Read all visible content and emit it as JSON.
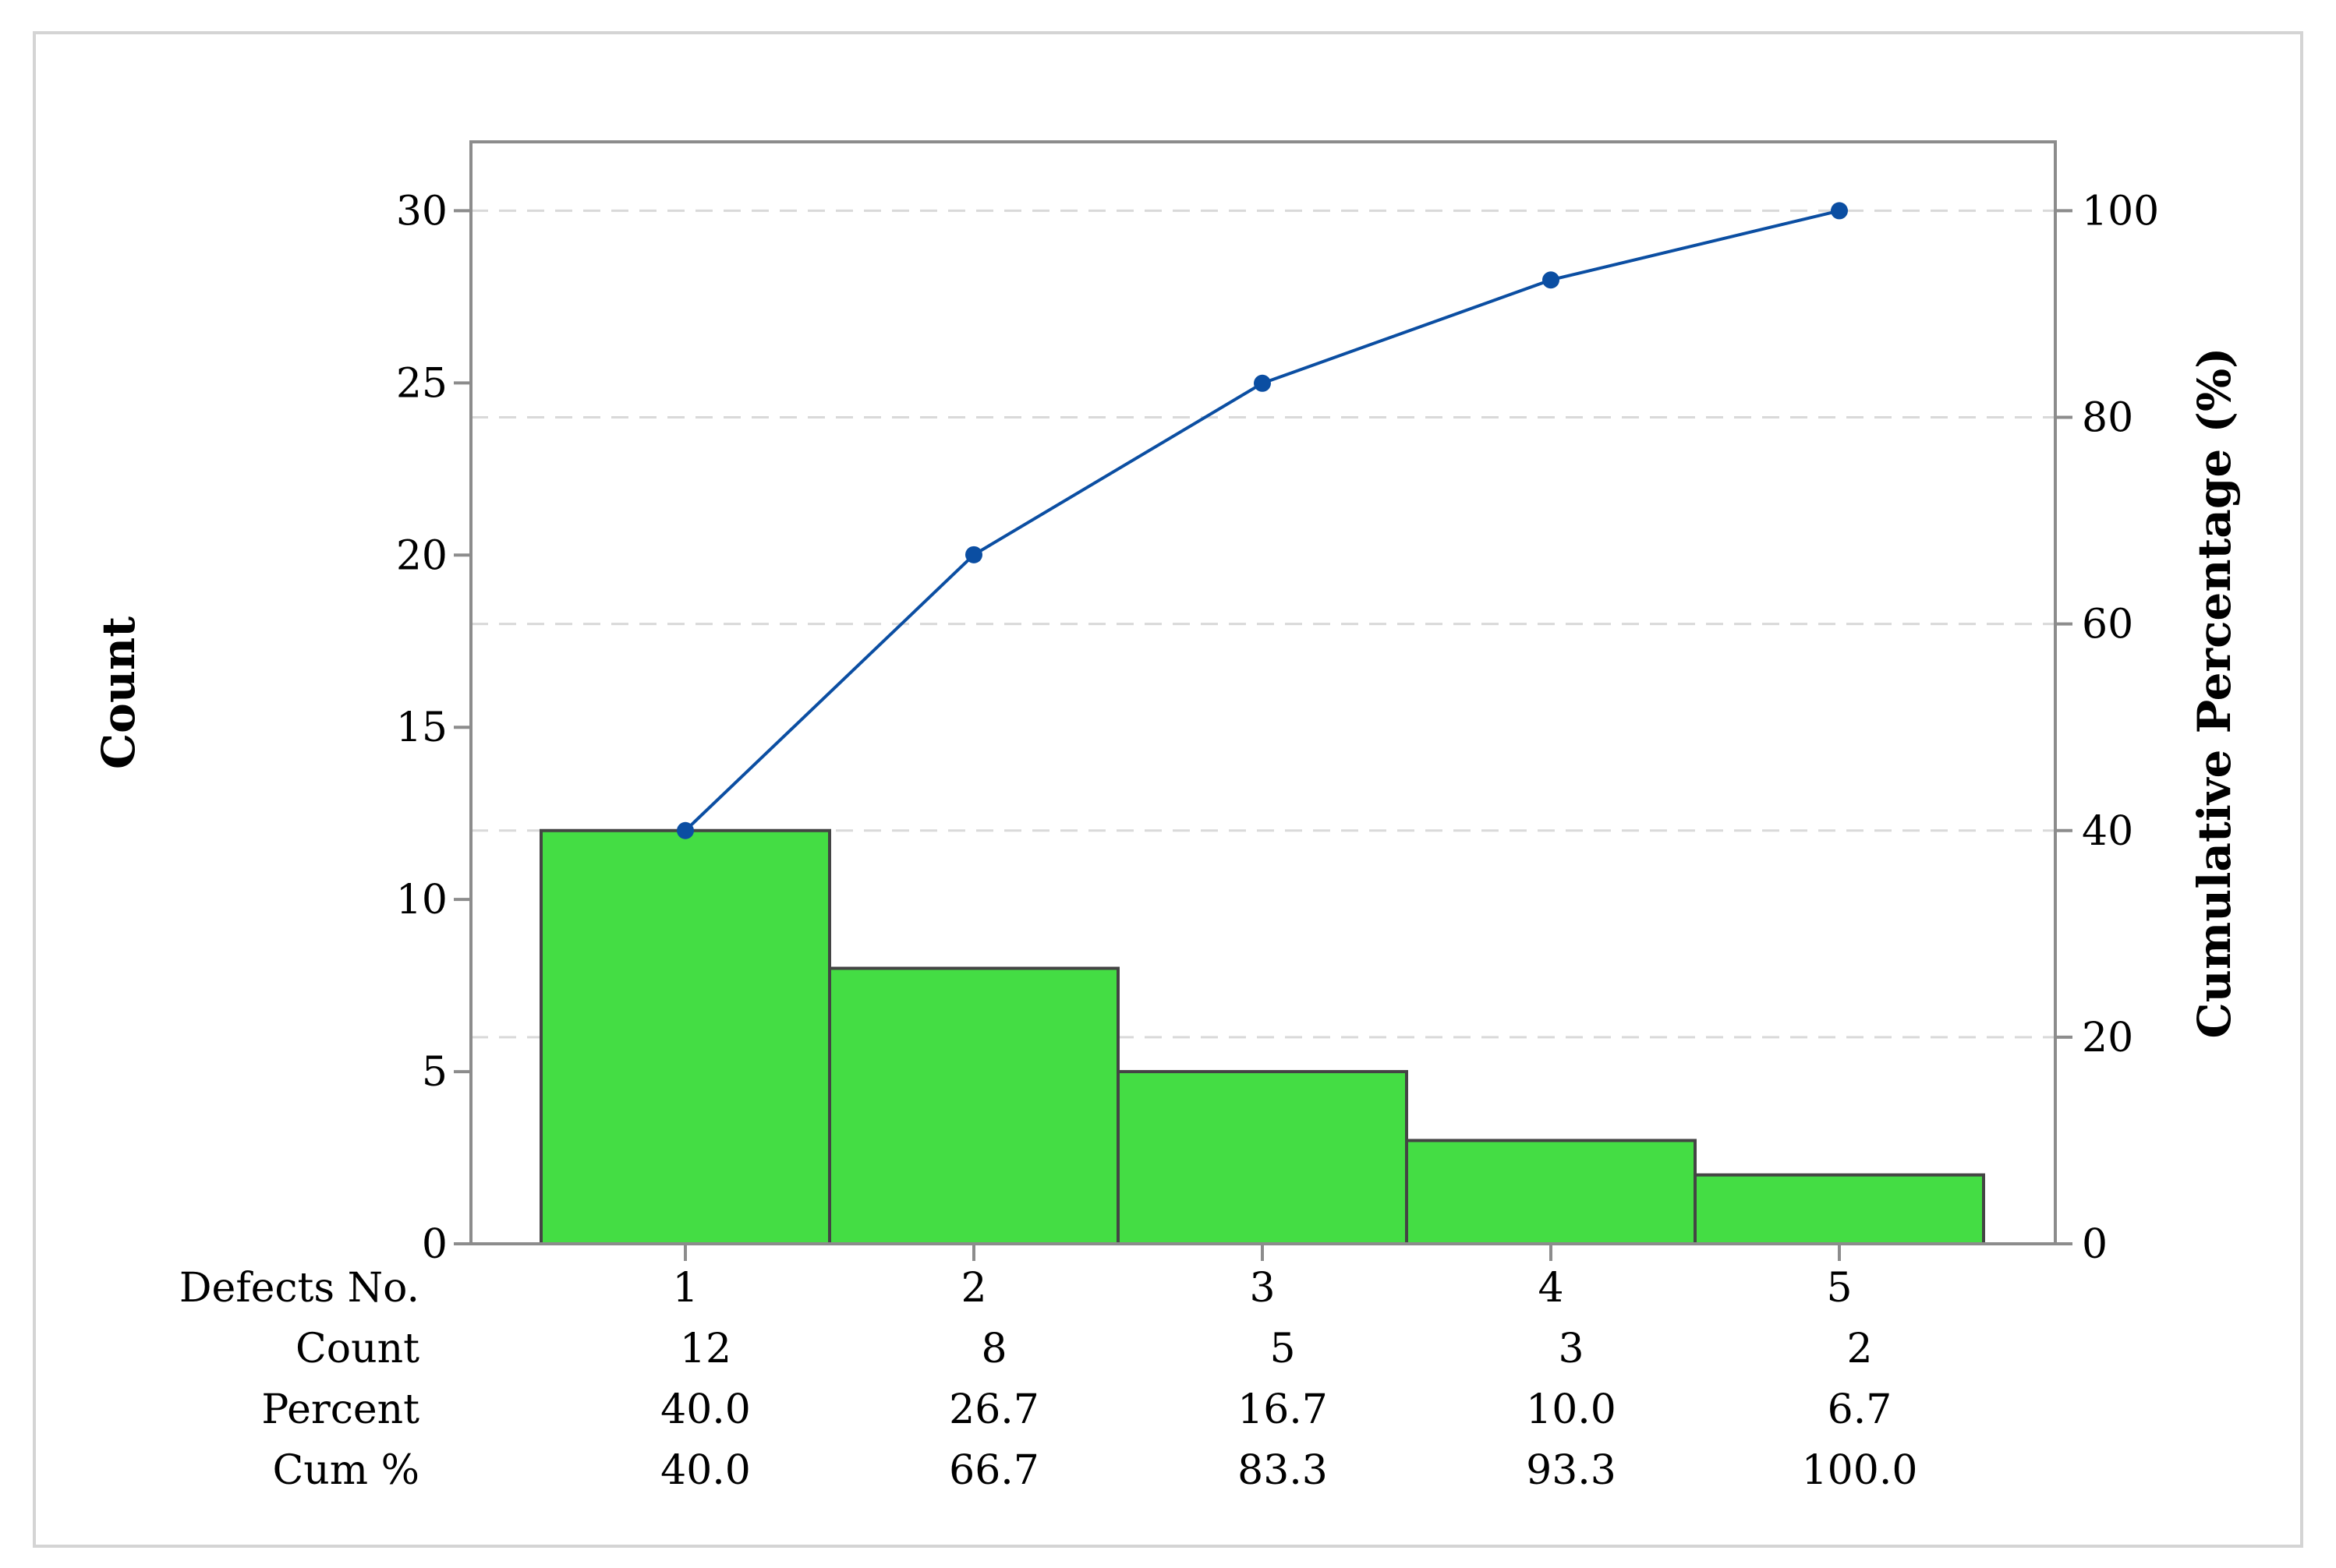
{
  "chart_data": {
    "type": "bar",
    "categories": [
      "1",
      "2",
      "3",
      "4",
      "5"
    ],
    "values": [
      12,
      8,
      5,
      3,
      2
    ],
    "cumulative_percent": [
      40.0,
      66.7,
      83.3,
      93.3,
      100.0
    ],
    "title": "",
    "xlabel": "Defects No.",
    "ylabel": "Count",
    "y2label": "Cumulative Percentage (%)",
    "ylim": [
      0,
      32
    ],
    "y2lim": [
      0,
      106.67
    ],
    "yticks": [
      "0",
      "5",
      "10",
      "15",
      "20",
      "25",
      "30"
    ],
    "y2ticks": [
      "0",
      "20",
      "40",
      "60",
      "80",
      "100"
    ],
    "grid": "dashed horizontal at right-axis ticks",
    "bar_color": "#44dd44",
    "line_color": "#0b4ea2",
    "table": {
      "row_labels": [
        "Defects No.",
        "Count",
        "Percent",
        "Cum %"
      ],
      "count": [
        "12",
        "8",
        "5",
        "3",
        "2"
      ],
      "percent": [
        "40.0",
        "26.7",
        "16.7",
        "10.0",
        "6.7"
      ],
      "cum_percent": [
        "40.0",
        "66.7",
        "83.3",
        "93.3",
        "100.0"
      ]
    }
  }
}
